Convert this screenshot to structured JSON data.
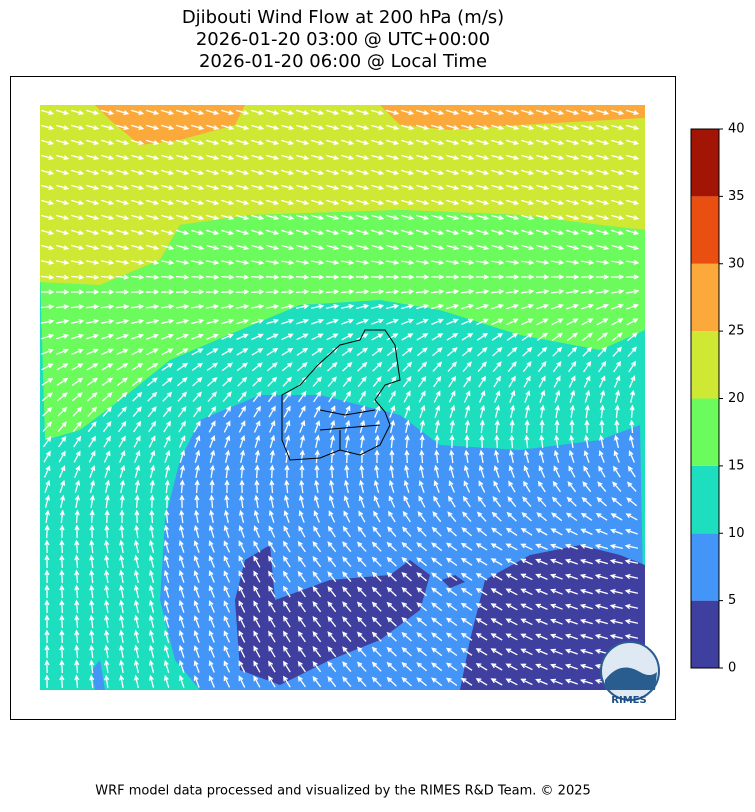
{
  "title": [
    "Djibouti Wind Flow at 200 hPa (m/s)",
    "2026-01-20 03:00 @ UTC+00:00",
    "2026-01-20 06:00 @ Local Time"
  ],
  "colorbar": {
    "ticks": [
      0,
      5,
      10,
      15,
      20,
      25,
      30,
      35,
      40
    ],
    "colors": [
      "#3f3fa0",
      "#4396f7",
      "#1ddfbf",
      "#6cfb5c",
      "#cfe834",
      "#fba93b",
      "#ea4f12",
      "#a21505"
    ]
  },
  "logo": "RIMES",
  "footer": "WRF model data processed and visualized by the RIMES R&D Team. © 2025"
}
